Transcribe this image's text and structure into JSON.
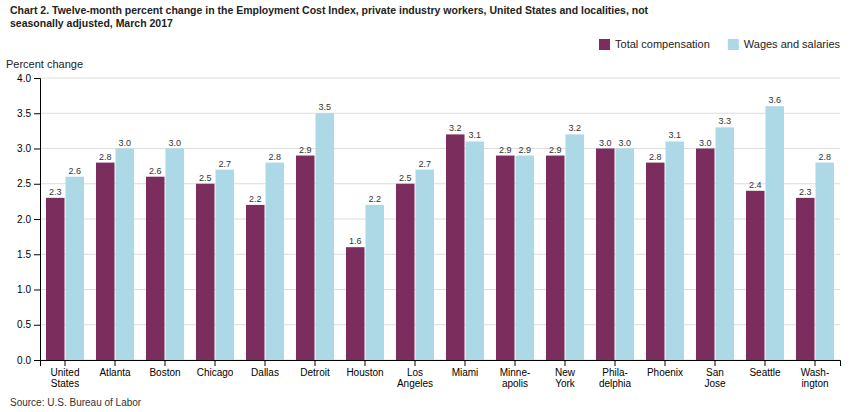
{
  "chart_data": {
    "type": "bar",
    "title": "Chart 2. Twelve-month percent change in the Employment Cost Index, private industry workers, United States and localities, not\nseasonally adjusted, March 2017",
    "ylabel": "Percent change",
    "annotations": [
      "Source: U.S. Bureau of Labor"
    ],
    "categories": [
      "United\nStates",
      "Atlanta",
      "Boston",
      "Chicago",
      "Dallas",
      "Detroit",
      "Houston",
      "Los\nAngeles",
      "Miami",
      "Minne-\napolis",
      "New\nYork",
      "Phila-\ndelphia",
      "Phoenix",
      "San\nJose",
      "Seattle",
      "Wash-\nington"
    ],
    "series": [
      {
        "name": "Total compensation",
        "color": "#7B2D5E",
        "values": [
          2.3,
          2.8,
          2.6,
          2.5,
          2.2,
          2.9,
          1.6,
          2.5,
          3.2,
          2.9,
          2.9,
          3.0,
          2.8,
          3.0,
          2.4,
          2.3
        ],
        "value_labels": [
          "2.3",
          "2.8",
          "2.6",
          "2.5",
          "2.2",
          "2.9",
          "1.6",
          "2.5",
          "3.2",
          "2.9",
          "2.9",
          "3.0",
          "2.8",
          "3.0",
          "2.4",
          "2.3"
        ]
      },
      {
        "name": "Wages and salaries",
        "color": "#ADD8E6",
        "values": [
          2.6,
          3.0,
          3.0,
          2.7,
          2.8,
          3.5,
          2.2,
          2.7,
          3.1,
          2.9,
          3.2,
          3.0,
          3.1,
          3.3,
          3.6,
          2.8
        ],
        "value_labels": [
          "2.6",
          "3.0",
          "3.0",
          "2.7",
          "2.8",
          "3.5",
          "2.2",
          "2.7",
          "3.1",
          "2.9",
          "3.2",
          "3.0",
          "3.1",
          "3.3",
          "3.6",
          "2.8"
        ]
      }
    ],
    "ylim": [
      0,
      4.0
    ],
    "yticks": [
      {
        "value": 0,
        "label": "0.0"
      },
      0.5,
      {
        "value": 1,
        "label": "1.0"
      },
      1.5,
      {
        "value": 2,
        "label": "2.0"
      },
      2.5,
      {
        "value": 3,
        "label": "3.0"
      },
      3.5,
      {
        "value": 4,
        "label": "4.0"
      }
    ],
    "grid": true,
    "legend": "upper right",
    "data_labels": true
  }
}
